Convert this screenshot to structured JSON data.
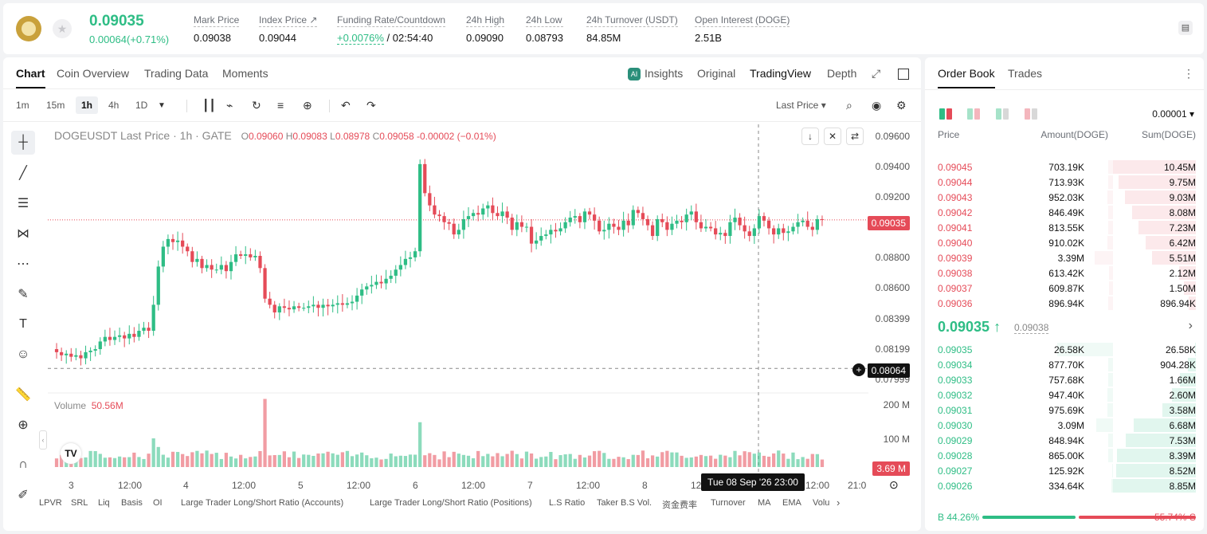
{
  "header": {
    "price": "0.09035",
    "change": "0.00064(+0.71%)",
    "stats": [
      {
        "label": "Mark Price",
        "value": "0.09038"
      },
      {
        "label": "Index Price ↗",
        "value": "0.09044"
      },
      {
        "label": "Funding Rate/Countdown",
        "value_green": "+0.0076%",
        "value": " / 02:54:40"
      },
      {
        "label": "24h High",
        "value": "0.09090"
      },
      {
        "label": "24h Low",
        "value": "0.08793"
      },
      {
        "label": "24h Turnover (USDT)",
        "value": "84.85M"
      },
      {
        "label": "Open Interest (DOGE)",
        "value": "2.51B"
      }
    ]
  },
  "chart_tabs": [
    "Chart",
    "Coin Overview",
    "Trading Data",
    "Moments"
  ],
  "view_tabs": [
    "Insights",
    "Original",
    "TradingView",
    "Depth"
  ],
  "timeframes": [
    "1m",
    "15m",
    "1h",
    "4h",
    "1D"
  ],
  "price_type": "Last Price ▾",
  "legend": {
    "symbol": "DOGEUSDT Last Price · 1h · GATE",
    "o": "O",
    "o_val": "0.09060",
    "h": "H",
    "h_val": "0.09083",
    "l": "L",
    "l_val": "0.08978",
    "c": "C",
    "c_val": "0.09058",
    "chg": "-0.00002 (−0.01%)"
  },
  "volume": {
    "label": "Volume",
    "value": "50.56M"
  },
  "price_axis": [
    "0.09600",
    "0.09400",
    "0.09200",
    "0.08800",
    "0.08600",
    "0.08399",
    "0.08199",
    "0.07999"
  ],
  "volume_axis": [
    "200 M",
    "100 M"
  ],
  "last_price_tag": "0.09035",
  "crosshair_tag": "0.08064",
  "volume_tag": "3.69 M",
  "time_axis": [
    "3",
    "12:00",
    "4",
    "12:00",
    "5",
    "12:00",
    "6",
    "12:00",
    "7",
    "12:00",
    "8",
    "12",
    "12:00",
    "21:0"
  ],
  "crosshair_time": "Tue 08 Sep '26   23:00",
  "indicators": [
    "LPVR",
    "SRL",
    "Liq",
    "Basis",
    "OI",
    "Large Trader Long/Short Ratio (Accounts)",
    "Large Trader Long/Short Ratio (Positions)",
    "L.S Ratio",
    "Taker B.S Vol.",
    "资金费率",
    "Turnover",
    "MA",
    "EMA",
    "Volu"
  ],
  "chart_data": {
    "type": "candlestick",
    "title": "DOGEUSDT Last Price · 1h · GATE",
    "ylim": [
      0.0794,
      0.0966
    ],
    "series_note": "hourly candles, approximated from the image",
    "closes": [
      0.0817,
      0.0815,
      0.0816,
      0.0814,
      0.0815,
      0.0813,
      0.0817,
      0.0818,
      0.0819,
      0.0824,
      0.0827,
      0.0825,
      0.0827,
      0.0828,
      0.0826,
      0.0829,
      0.0827,
      0.0831,
      0.0833,
      0.0831,
      0.0848,
      0.0873,
      0.0886,
      0.0891,
      0.0889,
      0.089,
      0.0886,
      0.0883,
      0.0876,
      0.0878,
      0.0872,
      0.0874,
      0.0871,
      0.0871,
      0.0874,
      0.087,
      0.0876,
      0.0881,
      0.088,
      0.0881,
      0.0879,
      0.088,
      0.0872,
      0.0852,
      0.0848,
      0.0843,
      0.0847,
      0.0846,
      0.0845,
      0.0847,
      0.0846,
      0.0846,
      0.0847,
      0.0848,
      0.0846,
      0.0848,
      0.0847,
      0.0848,
      0.0849,
      0.0848,
      0.0849,
      0.085,
      0.0854,
      0.0858,
      0.086,
      0.0861,
      0.0863,
      0.0862,
      0.0865,
      0.0867,
      0.0871,
      0.0874,
      0.0878,
      0.0879,
      0.0883,
      0.094,
      0.0921,
      0.0913,
      0.0907,
      0.0906,
      0.0902,
      0.0901,
      0.0894,
      0.0897,
      0.0904,
      0.0906,
      0.0908,
      0.0907,
      0.0911,
      0.0913,
      0.0908,
      0.0906,
      0.0909,
      0.0905,
      0.0897,
      0.0902,
      0.0899,
      0.0899,
      0.0888,
      0.089,
      0.0893,
      0.0894,
      0.0897,
      0.0896,
      0.0898,
      0.0902,
      0.0905,
      0.0906,
      0.0902,
      0.0909,
      0.0907,
      0.0903,
      0.0896,
      0.0897,
      0.0901,
      0.0899,
      0.0897,
      0.0903,
      0.09,
      0.091,
      0.0908,
      0.0904,
      0.09,
      0.0893,
      0.0904,
      0.0902,
      0.0897,
      0.0901,
      0.0903,
      0.0902,
      0.0907,
      0.0909,
      0.0902,
      0.0898,
      0.0899,
      0.0898,
      0.0894,
      0.0895,
      0.0893,
      0.0902,
      0.0905,
      0.09,
      0.0896,
      0.0893,
      0.0898,
      0.0906,
      0.0903,
      0.0898,
      0.0894,
      0.0898,
      0.0895,
      0.0896,
      0.0899,
      0.0902,
      0.0903,
      0.0899,
      0.0897,
      0.0904,
      0.09035
    ],
    "volume_ylim": [
      0,
      200
    ]
  },
  "book": {
    "tabs": [
      "Order Book",
      "Trades"
    ],
    "precision": "0.00001 ▾",
    "headers": [
      "Price",
      "Amount(DOGE)",
      "Sum(DOGE)"
    ],
    "asks": [
      {
        "p": "0.09045",
        "a": "703.19K",
        "s": "10.45M",
        "f": 1.0,
        "af": 0.05
      },
      {
        "p": "0.09044",
        "a": "713.93K",
        "s": "9.75M",
        "f": 0.93,
        "af": 0.05
      },
      {
        "p": "0.09043",
        "a": "952.03K",
        "s": "9.03M",
        "f": 0.86,
        "af": 0.06
      },
      {
        "p": "0.09042",
        "a": "846.49K",
        "s": "8.08M",
        "f": 0.77,
        "af": 0.05
      },
      {
        "p": "0.09041",
        "a": "813.55K",
        "s": "7.23M",
        "f": 0.69,
        "af": 0.05
      },
      {
        "p": "0.09040",
        "a": "910.02K",
        "s": "6.42M",
        "f": 0.61,
        "af": 0.06
      },
      {
        "p": "0.09039",
        "a": "3.39M",
        "s": "5.51M",
        "f": 0.53,
        "af": 0.2
      },
      {
        "p": "0.09038",
        "a": "613.42K",
        "s": "2.12M",
        "f": 0.2,
        "af": 0.04
      },
      {
        "p": "0.09037",
        "a": "609.87K",
        "s": "1.50M",
        "f": 0.14,
        "af": 0.04
      },
      {
        "p": "0.09036",
        "a": "896.94K",
        "s": "896.94K",
        "f": 0.09,
        "af": 0.05
      }
    ],
    "mid_price": "0.09035 ↑",
    "mid_ref": "0.09038",
    "bids": [
      {
        "p": "0.09035",
        "a": "26.58K",
        "s": "26.58K",
        "f": 0.01,
        "af": 0.6
      },
      {
        "p": "0.09034",
        "a": "877.70K",
        "s": "904.28K",
        "f": 0.1,
        "af": 0.05
      },
      {
        "p": "0.09033",
        "a": "757.68K",
        "s": "1.66M",
        "f": 0.19,
        "af": 0.05
      },
      {
        "p": "0.09032",
        "a": "947.40K",
        "s": "2.60M",
        "f": 0.29,
        "af": 0.06
      },
      {
        "p": "0.09031",
        "a": "975.69K",
        "s": "3.58M",
        "f": 0.4,
        "af": 0.06
      },
      {
        "p": "0.09030",
        "a": "3.09M",
        "s": "6.68M",
        "f": 0.75,
        "af": 0.18
      },
      {
        "p": "0.09029",
        "a": "848.94K",
        "s": "7.53M",
        "f": 0.85,
        "af": 0.05
      },
      {
        "p": "0.09028",
        "a": "865.00K",
        "s": "8.39M",
        "f": 0.95,
        "af": 0.05
      },
      {
        "p": "0.09027",
        "a": "125.92K",
        "s": "8.52M",
        "f": 0.96,
        "af": 0.01
      },
      {
        "p": "0.09026",
        "a": "334.64K",
        "s": "8.85M",
        "f": 1.0,
        "af": 0.02
      }
    ],
    "buy_ratio": "B 44.26%",
    "sell_ratio": "55.74% S",
    "buy_fraction": 0.4426
  },
  "colors": {
    "up": "#2ebd85",
    "down": "#e54b58"
  }
}
